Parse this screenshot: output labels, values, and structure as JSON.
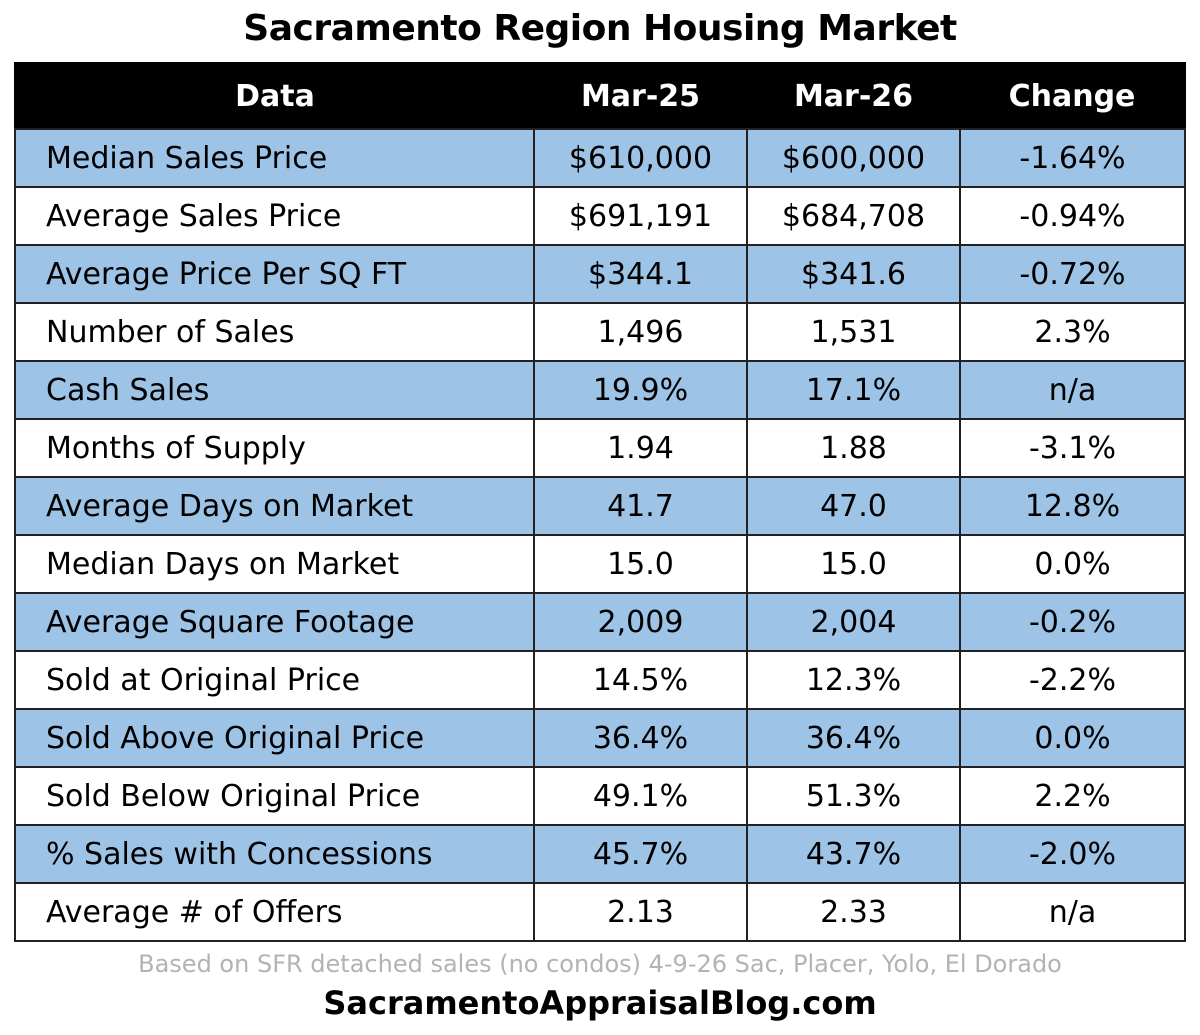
{
  "title": "Sacramento Region Housing Market",
  "colors": {
    "header_bg": "#000000",
    "header_text": "#ffffff",
    "band_blue": "#9dc3e6"
  },
  "chart_data": {
    "type": "table",
    "title": "Sacramento Region Housing Market",
    "columns": [
      "Data",
      "Mar-25",
      "Mar-26",
      "Change"
    ],
    "rows": [
      [
        "Median Sales Price",
        "$610,000",
        "$600,000",
        "-1.64%"
      ],
      [
        "Average Sales Price",
        "$691,191",
        "$684,708",
        "-0.94%"
      ],
      [
        "Average Price Per SQ FT",
        "$344.1",
        "$341.6",
        "-0.72%"
      ],
      [
        "Number of Sales",
        "1,496",
        "1,531",
        "2.3%"
      ],
      [
        "Cash Sales",
        "19.9%",
        "17.1%",
        "n/a"
      ],
      [
        "Months of Supply",
        "1.94",
        "1.88",
        "-3.1%"
      ],
      [
        "Average Days on Market",
        "41.7",
        "47.0",
        "12.8%"
      ],
      [
        "Median Days on Market",
        "15.0",
        "15.0",
        "0.0%"
      ],
      [
        "Average Square Footage",
        "2,009",
        "2,004",
        "-0.2%"
      ],
      [
        "Sold at Original Price",
        "14.5%",
        "12.3%",
        "-2.2%"
      ],
      [
        "Sold Above Original Price",
        "36.4%",
        "36.4%",
        "0.0%"
      ],
      [
        "Sold Below Original Price",
        "49.1%",
        "51.3%",
        "2.2%"
      ],
      [
        "% Sales with Concessions",
        "45.7%",
        "43.7%",
        "-2.0%"
      ],
      [
        "Average # of Offers",
        "2.13",
        "2.33",
        "n/a"
      ]
    ]
  },
  "footnote": "Based on SFR detached sales (no condos) 4-9-26 Sac, Placer, Yolo, El Dorado",
  "site": "SacramentoAppraisalBlog.com"
}
